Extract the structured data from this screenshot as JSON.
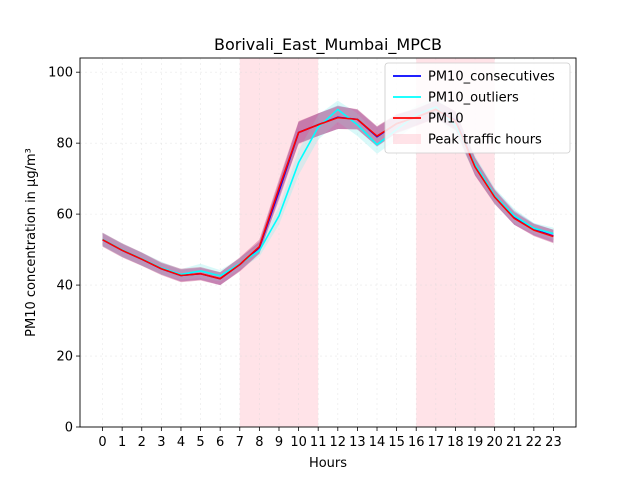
{
  "chart_data": {
    "type": "line",
    "title": "Borivali_East_Mumbai_MPCB",
    "xlabel": "Hours",
    "ylabel": "PM10 concentration in µg/m³",
    "xlim": [
      -1.15,
      24.15
    ],
    "ylim": [
      0,
      104
    ],
    "xticks": [
      0,
      1,
      2,
      3,
      4,
      5,
      6,
      7,
      8,
      9,
      10,
      11,
      12,
      13,
      14,
      15,
      16,
      17,
      18,
      19,
      20,
      21,
      22,
      23
    ],
    "yticks": [
      0,
      20,
      40,
      60,
      80,
      100
    ],
    "grid": true,
    "legend_position": "top-right",
    "x": [
      0,
      1,
      2,
      3,
      4,
      5,
      6,
      7,
      8,
      9,
      10,
      11,
      12,
      13,
      14,
      15,
      16,
      17,
      18,
      19,
      20,
      21,
      22,
      23
    ],
    "shaded_regions": [
      {
        "name": "Peak traffic hours",
        "x_start": 7,
        "x_end": 11,
        "color": "#ffc0cb"
      },
      {
        "name": "Peak traffic hours",
        "x_start": 16,
        "x_end": 20,
        "color": "#ffc0cb"
      }
    ],
    "series": [
      {
        "name": "PM10_consecutives",
        "color": "#0000ff",
        "values": [
          52.8,
          49.8,
          47.3,
          44.6,
          42.7,
          43.2,
          41.8,
          45.8,
          50.6,
          66.5,
          83,
          85.2,
          87.3,
          86.7,
          81.8,
          85.5,
          87.3,
          89.5,
          86.5,
          73.5,
          65,
          59,
          55.7,
          53.8
        ],
        "band_lower": [
          51,
          48,
          45.5,
          43,
          41,
          41.5,
          40,
          44,
          49,
          64,
          80,
          82,
          84,
          84,
          79,
          83,
          85,
          87,
          84,
          71,
          63,
          57,
          54,
          52
        ],
        "band_upper": [
          54.6,
          51.6,
          49.1,
          46.2,
          44.4,
          44.9,
          43.6,
          47.6,
          52.2,
          69,
          86,
          88.4,
          90.6,
          89.4,
          84.6,
          88,
          89.6,
          92,
          89,
          76,
          67,
          61,
          57.4,
          55.6
        ]
      },
      {
        "name": "PM10_outliers",
        "color": "#00ffff",
        "values": [
          52.9,
          49.9,
          47.4,
          44.8,
          43,
          44,
          42.6,
          46,
          49.7,
          59.5,
          74.5,
          84.5,
          89.5,
          85.2,
          79.6,
          83.8,
          88,
          90.2,
          85,
          74,
          65.2,
          59.5,
          56,
          54.5
        ],
        "band_lower": [
          51,
          48,
          45.6,
          43,
          41.5,
          42,
          41,
          44.5,
          48,
          57,
          71,
          81,
          86,
          82,
          77,
          81,
          85.5,
          87.5,
          82,
          71.5,
          63,
          57.5,
          54.5,
          52.8
        ],
        "band_upper": [
          54.8,
          51.8,
          49.2,
          46.6,
          44.5,
          46,
          44.2,
          47.5,
          51.4,
          62,
          78,
          88,
          92,
          88.4,
          82.2,
          86.6,
          90.5,
          93,
          88,
          76.5,
          67.4,
          61.5,
          57.5,
          56.2
        ]
      },
      {
        "name": "PM10",
        "color": "#ff0000",
        "values": [
          52.8,
          49.8,
          47.3,
          44.6,
          42.7,
          43.2,
          41.8,
          45.8,
          50.8,
          67.3,
          83,
          85.2,
          87.2,
          86.7,
          82,
          85.5,
          87.3,
          89.5,
          86.3,
          73.3,
          64.8,
          58.8,
          55.5,
          53.7
        ],
        "band_lower": [
          50.8,
          47.8,
          45.4,
          42.8,
          40.8,
          41.3,
          40,
          43.8,
          48.8,
          64.8,
          79.8,
          82,
          84,
          83.8,
          79.2,
          82.8,
          84.8,
          87,
          83.6,
          70.8,
          62.8,
          57,
          53.8,
          51.8
        ],
        "band_upper": [
          54.8,
          51.8,
          49.2,
          46.4,
          44.6,
          45.1,
          43.6,
          47.8,
          52.8,
          69.8,
          86.2,
          88.4,
          90.4,
          89.6,
          84.8,
          88.2,
          89.8,
          92,
          89,
          75.8,
          66.8,
          60.6,
          57.2,
          55.6
        ]
      }
    ],
    "legend": [
      "PM10_consecutives",
      "PM10_outliers",
      "PM10",
      "Peak traffic hours"
    ]
  }
}
